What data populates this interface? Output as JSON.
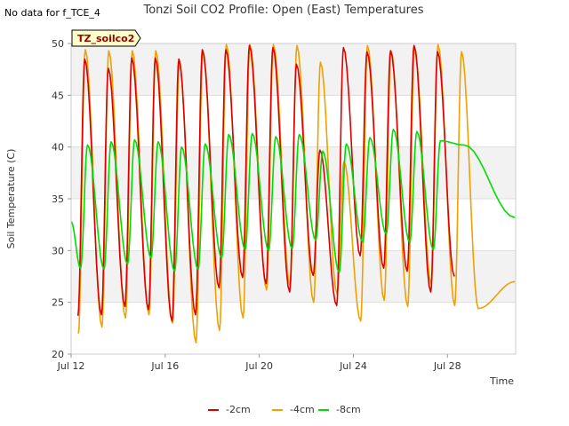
{
  "no_data_note": "No data for f_TCE_4",
  "chart_data": {
    "type": "line",
    "title": "Tonzi Soil CO2 Profile: Open (East) Temperatures",
    "xlabel": "Time",
    "ylabel": "Soil Temperature (C)",
    "site_tag": "TZ_soilco2",
    "ylim": [
      20,
      50
    ],
    "xlim_days": [
      12,
      30.9
    ],
    "yticks": [
      20,
      25,
      30,
      35,
      40,
      45,
      50
    ],
    "xticks": [
      {
        "day": 12,
        "label": "Jul 12"
      },
      {
        "day": 16,
        "label": "Jul 16"
      },
      {
        "day": 20,
        "label": "Jul 20"
      },
      {
        "day": 24,
        "label": "Jul 24"
      },
      {
        "day": 28,
        "label": "Jul 28"
      }
    ],
    "grid": true,
    "legend_position": "bottom",
    "series": [
      {
        "name": "-2cm",
        "color": "#dd0000",
        "daily_min": [
          23.7,
          23.8,
          24.6,
          24.3,
          23.2,
          23.8,
          26.4,
          27.4,
          26.8,
          26.0,
          27.6,
          24.7,
          29.5,
          28.3,
          28.0,
          26.0,
          27.5
        ],
        "daily_max": [
          48.5,
          47.6,
          48.6,
          48.6,
          48.5,
          49.4,
          49.4,
          49.8,
          49.6,
          48.0,
          39.7,
          49.6,
          49.2,
          49.3,
          49.8,
          49.2
        ]
      },
      {
        "name": "-4cm",
        "color": "#f0a000",
        "daily_min": [
          22.0,
          22.6,
          23.5,
          23.8,
          23.0,
          21.1,
          22.3,
          23.5,
          26.2,
          26.6,
          25.0,
          25.8,
          23.2,
          25.2,
          24.6,
          26.8,
          24.7,
          24.4
        ],
        "daily_max": [
          49.4,
          49.3,
          49.3,
          49.3,
          48.0,
          49.1,
          49.9,
          49.9,
          49.9,
          49.8,
          48.2,
          38.6,
          49.8,
          49.3,
          49.4,
          49.9,
          49.2
        ],
        "end_value": 27.0
      },
      {
        "name": "-8cm",
        "color": "#00dd00",
        "daily_min": [
          28.3,
          28.2,
          28.7,
          29.3,
          28.0,
          28.2,
          29.3,
          30.1,
          30.0,
          30.2,
          31.0,
          27.9,
          30.8,
          31.6,
          30.8,
          30.1
        ],
        "daily_max": [
          40.2,
          40.5,
          40.7,
          40.5,
          40.0,
          40.3,
          41.2,
          41.3,
          41.0,
          41.2,
          39.6,
          40.3,
          40.9,
          41.7,
          41.5,
          40.6,
          40.2
        ],
        "start_value": 32.8,
        "end_value": 33.2
      }
    ]
  }
}
